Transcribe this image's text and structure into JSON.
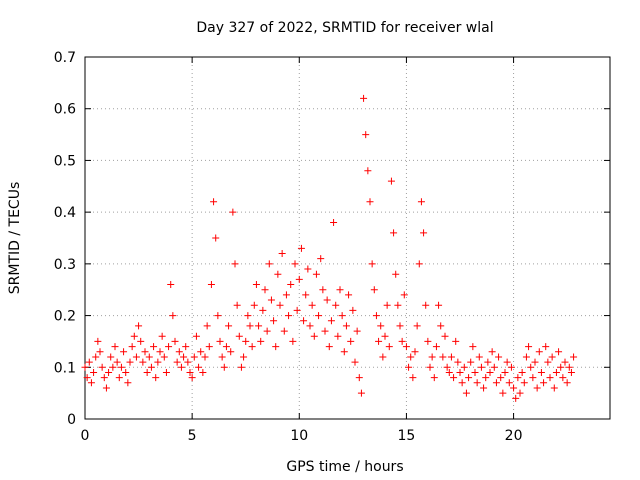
{
  "chart_data": {
    "type": "scatter",
    "title": "Day 327 of 2022, SRMTID for receiver wlal",
    "xlabel": "GPS time / hours",
    "ylabel": "SRMTID / TECUs",
    "xlim": [
      0,
      24.5
    ],
    "ylim": [
      0,
      0.7
    ],
    "xticks": [
      0,
      5,
      10,
      15,
      20
    ],
    "yticks": [
      0,
      0.1,
      0.2,
      0.3,
      0.4,
      0.5,
      0.6,
      0.7
    ],
    "xtick_labels": [
      "0",
      "5",
      "10",
      "15",
      "20"
    ],
    "ytick_labels": [
      "0",
      "0.1",
      "0.2",
      "0.3",
      "0.4",
      "0.5",
      "0.6",
      "0.7"
    ],
    "grid": true,
    "marker": "+",
    "color": "#ff0000",
    "series": [
      {
        "name": "SRMTID",
        "x": [
          0.0,
          0.1,
          0.2,
          0.3,
          0.4,
          0.5,
          0.6,
          0.7,
          0.8,
          0.9,
          1.0,
          1.1,
          1.2,
          1.3,
          1.4,
          1.5,
          1.6,
          1.7,
          1.8,
          1.9,
          2.0,
          2.1,
          2.2,
          2.3,
          2.4,
          2.5,
          2.6,
          2.7,
          2.8,
          2.9,
          3.0,
          3.1,
          3.2,
          3.3,
          3.4,
          3.5,
          3.6,
          3.7,
          3.8,
          3.9,
          4.0,
          4.1,
          4.2,
          4.3,
          4.4,
          4.5,
          4.6,
          4.7,
          4.8,
          4.9,
          5.0,
          5.1,
          5.2,
          5.3,
          5.4,
          5.5,
          5.6,
          5.7,
          5.8,
          5.9,
          6.0,
          6.1,
          6.2,
          6.3,
          6.4,
          6.5,
          6.6,
          6.7,
          6.8,
          6.9,
          7.0,
          7.1,
          7.2,
          7.3,
          7.4,
          7.5,
          7.6,
          7.7,
          7.8,
          7.9,
          8.0,
          8.1,
          8.2,
          8.3,
          8.4,
          8.5,
          8.6,
          8.7,
          8.8,
          8.9,
          9.0,
          9.1,
          9.2,
          9.3,
          9.4,
          9.5,
          9.6,
          9.7,
          9.8,
          9.9,
          10.0,
          10.1,
          10.2,
          10.3,
          10.4,
          10.5,
          10.6,
          10.7,
          10.8,
          10.9,
          11.0,
          11.1,
          11.2,
          11.3,
          11.4,
          11.5,
          11.6,
          11.7,
          11.8,
          11.9,
          12.0,
          12.1,
          12.2,
          12.3,
          12.4,
          12.5,
          12.6,
          12.7,
          12.8,
          12.9,
          13.0,
          13.1,
          13.2,
          13.3,
          13.4,
          13.5,
          13.6,
          13.7,
          13.8,
          13.9,
          14.0,
          14.1,
          14.2,
          14.3,
          14.4,
          14.5,
          14.6,
          14.7,
          14.8,
          14.9,
          15.0,
          15.1,
          15.2,
          15.3,
          15.4,
          15.5,
          15.6,
          15.7,
          15.8,
          15.9,
          16.0,
          16.1,
          16.2,
          16.3,
          16.4,
          16.5,
          16.6,
          16.7,
          16.8,
          16.9,
          17.0,
          17.1,
          17.2,
          17.3,
          17.4,
          17.5,
          17.6,
          17.7,
          17.8,
          17.9,
          18.0,
          18.1,
          18.2,
          18.3,
          18.4,
          18.5,
          18.6,
          18.7,
          18.8,
          18.9,
          19.0,
          19.1,
          19.2,
          19.3,
          19.4,
          19.5,
          19.6,
          19.7,
          19.8,
          19.9,
          20.0,
          20.1,
          20.2,
          20.3,
          20.4,
          20.5,
          20.6,
          20.7,
          20.8,
          20.9,
          21.0,
          21.1,
          21.2,
          21.3,
          21.4,
          21.5,
          21.6,
          21.7,
          21.8,
          21.9,
          22.0,
          22.1,
          22.2,
          22.3,
          22.4,
          22.5,
          22.6,
          22.7,
          22.8
        ],
        "y": [
          0.1,
          0.08,
          0.11,
          0.07,
          0.09,
          0.12,
          0.15,
          0.13,
          0.1,
          0.08,
          0.06,
          0.09,
          0.12,
          0.1,
          0.14,
          0.11,
          0.08,
          0.1,
          0.13,
          0.09,
          0.07,
          0.11,
          0.14,
          0.16,
          0.12,
          0.18,
          0.15,
          0.11,
          0.13,
          0.09,
          0.12,
          0.1,
          0.14,
          0.08,
          0.11,
          0.13,
          0.16,
          0.12,
          0.09,
          0.14,
          0.26,
          0.2,
          0.15,
          0.11,
          0.13,
          0.1,
          0.12,
          0.14,
          0.11,
          0.09,
          0.08,
          0.12,
          0.16,
          0.1,
          0.13,
          0.09,
          0.12,
          0.18,
          0.14,
          0.26,
          0.42,
          0.35,
          0.2,
          0.15,
          0.12,
          0.1,
          0.14,
          0.18,
          0.13,
          0.4,
          0.3,
          0.22,
          0.16,
          0.1,
          0.12,
          0.15,
          0.2,
          0.18,
          0.14,
          0.22,
          0.26,
          0.18,
          0.15,
          0.21,
          0.25,
          0.17,
          0.3,
          0.23,
          0.19,
          0.14,
          0.28,
          0.22,
          0.32,
          0.17,
          0.24,
          0.2,
          0.26,
          0.15,
          0.3,
          0.21,
          0.27,
          0.33,
          0.19,
          0.24,
          0.29,
          0.18,
          0.22,
          0.16,
          0.28,
          0.2,
          0.31,
          0.25,
          0.17,
          0.23,
          0.14,
          0.19,
          0.38,
          0.22,
          0.16,
          0.25,
          0.2,
          0.13,
          0.18,
          0.24,
          0.15,
          0.21,
          0.11,
          0.17,
          0.08,
          0.05,
          0.62,
          0.55,
          0.48,
          0.42,
          0.3,
          0.25,
          0.2,
          0.15,
          0.18,
          0.12,
          0.16,
          0.22,
          0.14,
          0.46,
          0.36,
          0.28,
          0.22,
          0.18,
          0.15,
          0.24,
          0.14,
          0.1,
          0.12,
          0.08,
          0.13,
          0.18,
          0.3,
          0.42,
          0.36,
          0.22,
          0.15,
          0.1,
          0.12,
          0.08,
          0.14,
          0.22,
          0.18,
          0.12,
          0.16,
          0.1,
          0.09,
          0.12,
          0.08,
          0.15,
          0.11,
          0.09,
          0.07,
          0.1,
          0.05,
          0.08,
          0.11,
          0.14,
          0.09,
          0.07,
          0.12,
          0.1,
          0.06,
          0.08,
          0.11,
          0.09,
          0.13,
          0.1,
          0.07,
          0.12,
          0.08,
          0.05,
          0.09,
          0.11,
          0.07,
          0.1,
          0.06,
          0.04,
          0.08,
          0.05,
          0.09,
          0.07,
          0.12,
          0.14,
          0.1,
          0.08,
          0.11,
          0.06,
          0.13,
          0.09,
          0.07,
          0.14,
          0.11,
          0.08,
          0.12,
          0.06,
          0.09,
          0.13,
          0.1,
          0.08,
          0.11,
          0.07,
          0.1,
          0.09,
          0.12
        ]
      }
    ]
  }
}
